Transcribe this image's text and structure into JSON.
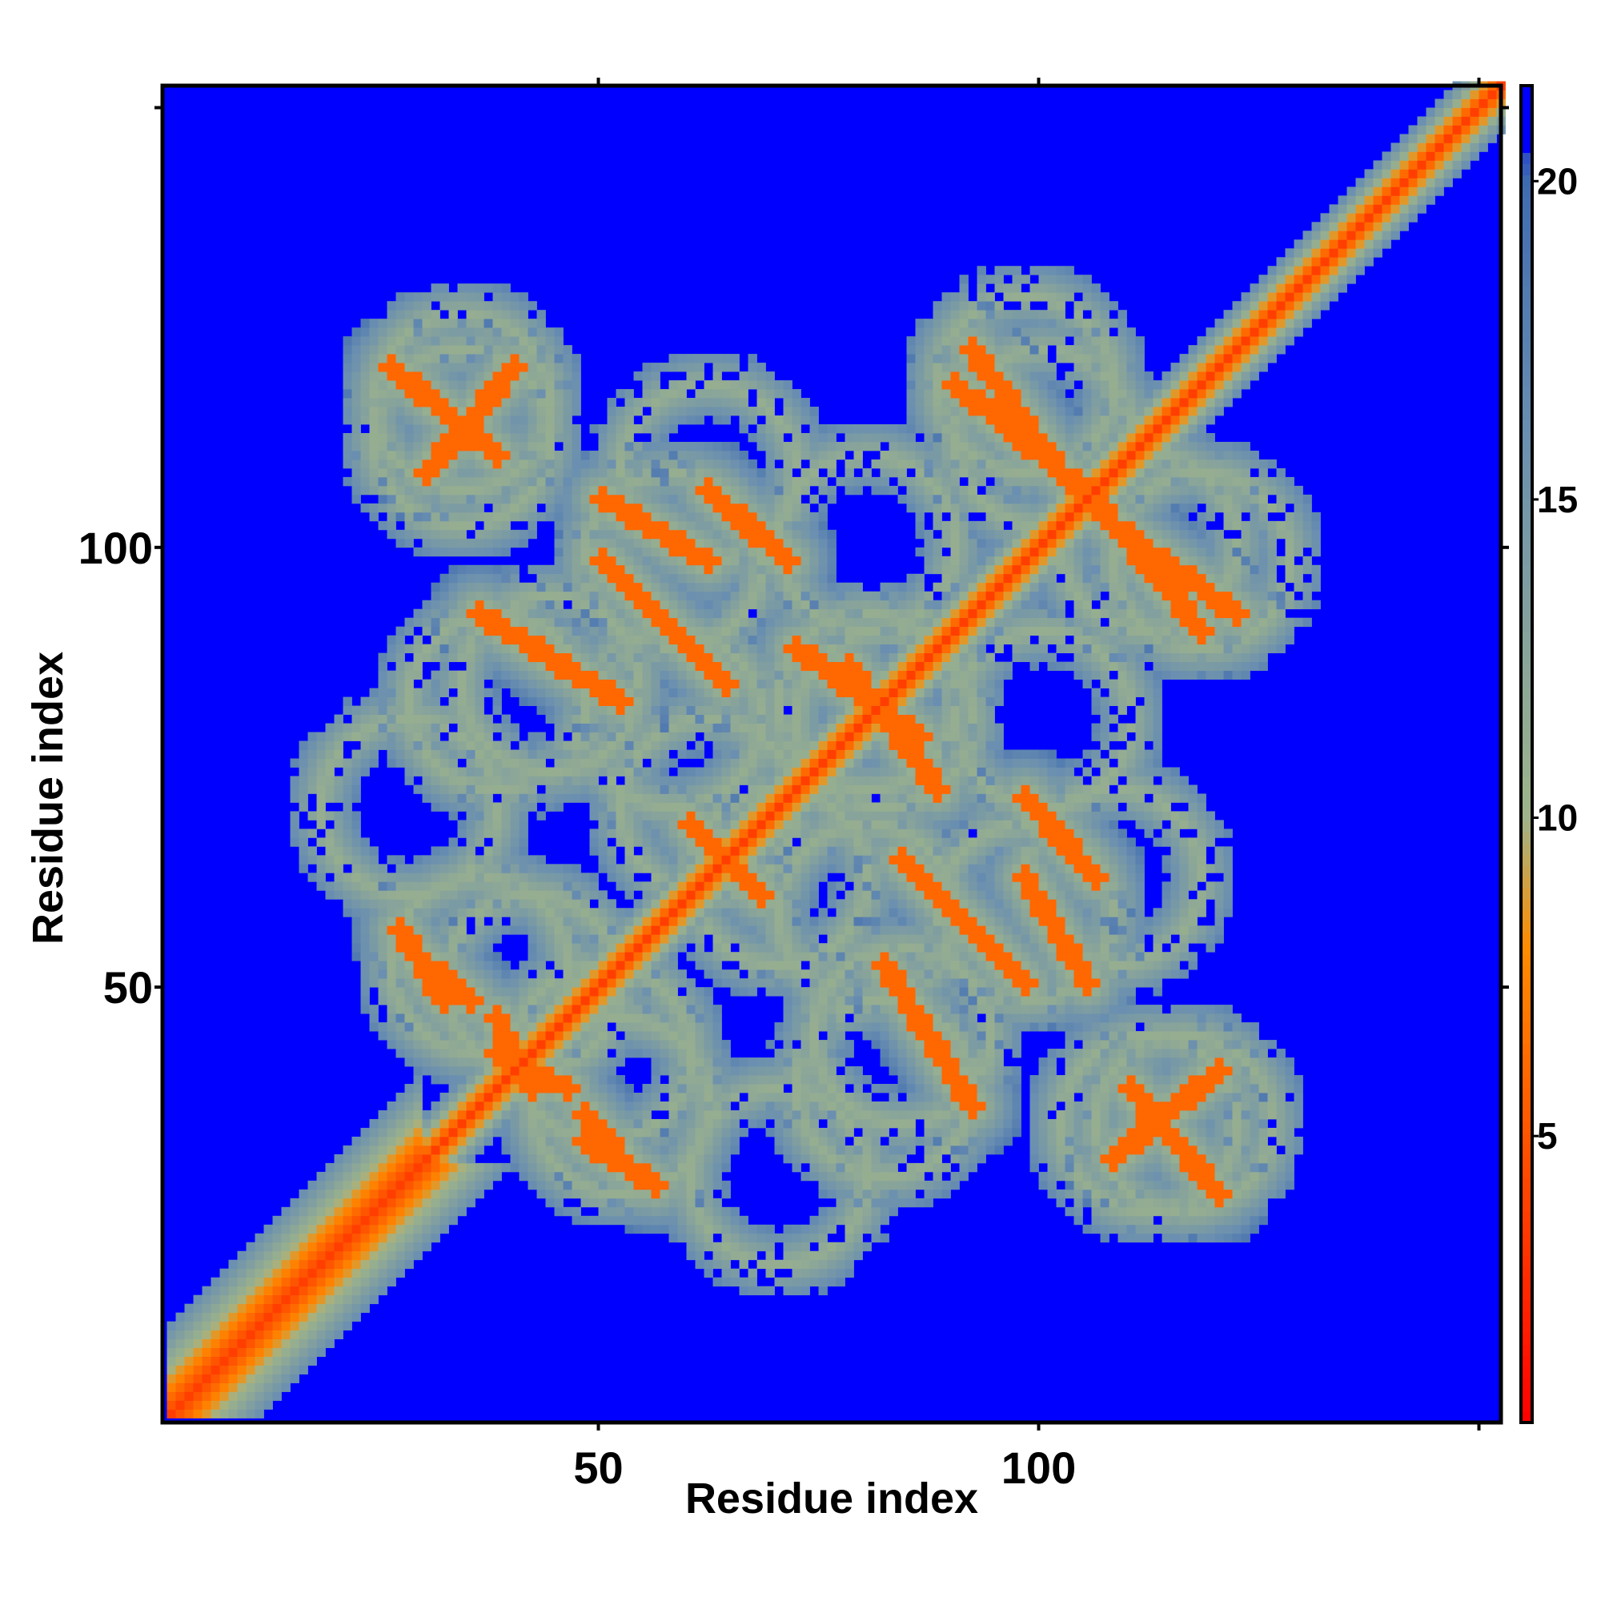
{
  "chart_data": {
    "type": "heatmap",
    "title": "",
    "xlabel": "Residue index",
    "ylabel": "Residue index",
    "xlim": [
      1,
      152
    ],
    "ylim": [
      1,
      152
    ],
    "x_ticks": [
      50,
      100
    ],
    "y_ticks": [
      50,
      100
    ],
    "colorbar": {
      "range": [
        0.5,
        21.5
      ],
      "ticks": [
        5,
        10,
        15,
        20
      ],
      "stops": [
        {
          "value": 0.5,
          "color": "#ff0000"
        },
        {
          "value": 8,
          "color": "#ff8c00"
        },
        {
          "value": 10,
          "color": "#9fb48a"
        },
        {
          "value": 16,
          "color": "#6a8fb0"
        },
        {
          "value": 20,
          "color": "#3f6bb0"
        },
        {
          "value": 21.5,
          "color": "#0000ff"
        }
      ]
    },
    "cutoff_color": "#0000ff",
    "description_values": {
      "diagonal_distance": 3.8,
      "background_distance": 21
    },
    "contact_segments": [
      {
        "x": [
          26,
          38
        ],
        "y": [
          120,
          110
        ],
        "d": 6
      },
      {
        "x": [
          36,
          52
        ],
        "y": [
          92,
          82
        ],
        "d": 6
      },
      {
        "x": [
          50,
          62
        ],
        "y": [
          105,
          98
        ],
        "d": 6
      },
      {
        "x": [
          72,
          86
        ],
        "y": [
          88,
          78
        ],
        "d": 6
      },
      {
        "x": [
          90,
          106
        ],
        "y": [
          118,
          105
        ],
        "d": 6
      },
      {
        "x": [
          108,
          122
        ],
        "y": [
          102,
          92
        ],
        "d": 6
      },
      {
        "x": [
          29,
          35
        ],
        "y": [
          53,
          48
        ],
        "d": 6
      },
      {
        "x": [
          38,
          46
        ],
        "y": [
          42,
          38
        ],
        "d": 6
      },
      {
        "x": [
          48,
          56
        ],
        "y": [
          32,
          27
        ],
        "d": 6
      },
      {
        "x": [
          84,
          98
        ],
        "y": [
          64,
          50
        ],
        "d": 6
      },
      {
        "x": [
          98,
          106
        ],
        "y": [
          71,
          62
        ],
        "d": 6
      },
      {
        "x": [
          108,
          120
        ],
        "y": [
          30,
          40
        ],
        "d": 6
      },
      {
        "x": [
          60,
          66
        ],
        "y": [
          68,
          62
        ],
        "d": 6
      }
    ],
    "cluster_centers": [
      {
        "x": 34,
        "y": 116
      },
      {
        "x": 58,
        "y": 98
      },
      {
        "x": 100,
        "y": 112
      },
      {
        "x": 118,
        "y": 98
      },
      {
        "x": 44,
        "y": 84
      },
      {
        "x": 80,
        "y": 82
      },
      {
        "x": 42,
        "y": 50
      },
      {
        "x": 80,
        "y": 58
      },
      {
        "x": 108,
        "y": 62
      },
      {
        "x": 52,
        "y": 36
      },
      {
        "x": 82,
        "y": 38
      },
      {
        "x": 112,
        "y": 34
      },
      {
        "x": 62,
        "y": 70
      },
      {
        "x": 100,
        "y": 80
      },
      {
        "x": 28,
        "y": 70
      }
    ]
  }
}
